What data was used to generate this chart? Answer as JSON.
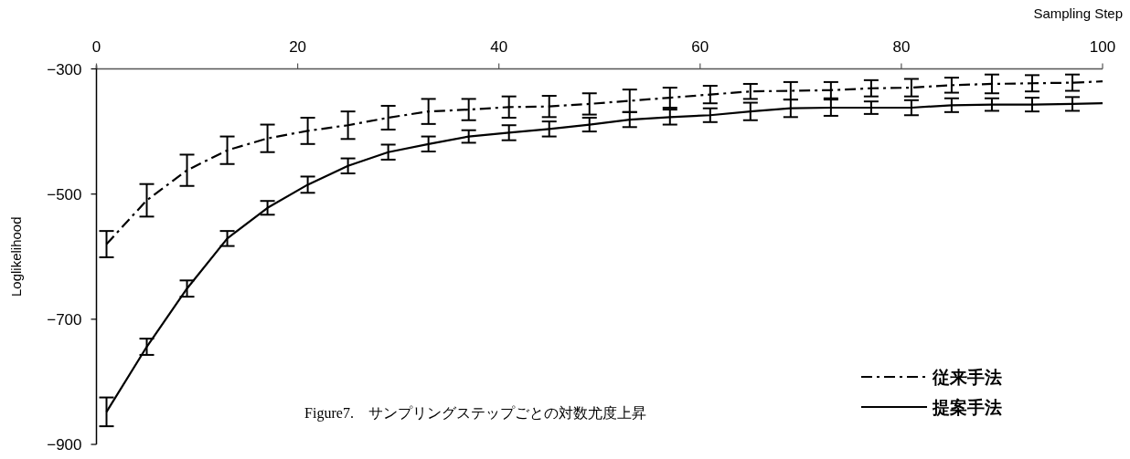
{
  "chart_data": {
    "type": "line",
    "xlabel": "Sampling Step",
    "ylabel": "Loglikelihood",
    "annotations": [
      "Figure7.　サンプリングステップごとの対数尤度上昇"
    ],
    "x": [
      1,
      5,
      9,
      13,
      17,
      21,
      25,
      29,
      33,
      37,
      41,
      45,
      49,
      53,
      57,
      61,
      65,
      69,
      73,
      77,
      81,
      85,
      89,
      93,
      97,
      100
    ],
    "series": [
      {
        "name": "従来手法",
        "color": "#000000",
        "line_style": "dashdot",
        "values": [
          -580,
          -510,
          -462,
          -430,
          -411,
          -399,
          -390,
          -378,
          -368,
          -365,
          -361,
          -360,
          -356,
          -351,
          -346,
          -341,
          -336,
          -335,
          -334,
          -331,
          -330,
          -326,
          -324,
          -323,
          -322,
          -320
        ],
        "errors": [
          21,
          26,
          25,
          22,
          22,
          21,
          22,
          19,
          20,
          17,
          17,
          17,
          17,
          18,
          16,
          14,
          12,
          14,
          13,
          13,
          14,
          12,
          15,
          13,
          13,
          null
        ]
      },
      {
        "name": "提案手法",
        "color": "#000000",
        "line_style": "solid",
        "values": [
          -848,
          -744,
          -651,
          -571,
          -522,
          -485,
          -455,
          -433,
          -420,
          -408,
          -402,
          -396,
          -389,
          -381,
          -377,
          -374,
          -368,
          -363,
          -362,
          -362,
          -362,
          -358,
          -357,
          -357,
          -356,
          -355
        ],
        "errors": [
          23,
          13,
          13,
          12,
          11,
          13,
          12,
          12,
          12,
          10,
          12,
          12,
          11,
          12,
          12,
          11,
          14,
          14,
          13,
          10,
          12,
          11,
          10,
          11,
          11,
          null
        ]
      }
    ],
    "xlim": [
      0,
      100
    ],
    "xticks": [
      0,
      20,
      40,
      60,
      80,
      100
    ],
    "ylim": [
      -900,
      -300
    ],
    "yticks": [
      {
        "value": -300,
        "label": "−300"
      },
      {
        "value": -500,
        "label": "−500"
      },
      {
        "value": -700,
        "label": "−700"
      },
      {
        "value": -900,
        "label": "−900"
      }
    ],
    "grid": false,
    "legend": "bottom right",
    "marker": "none"
  }
}
